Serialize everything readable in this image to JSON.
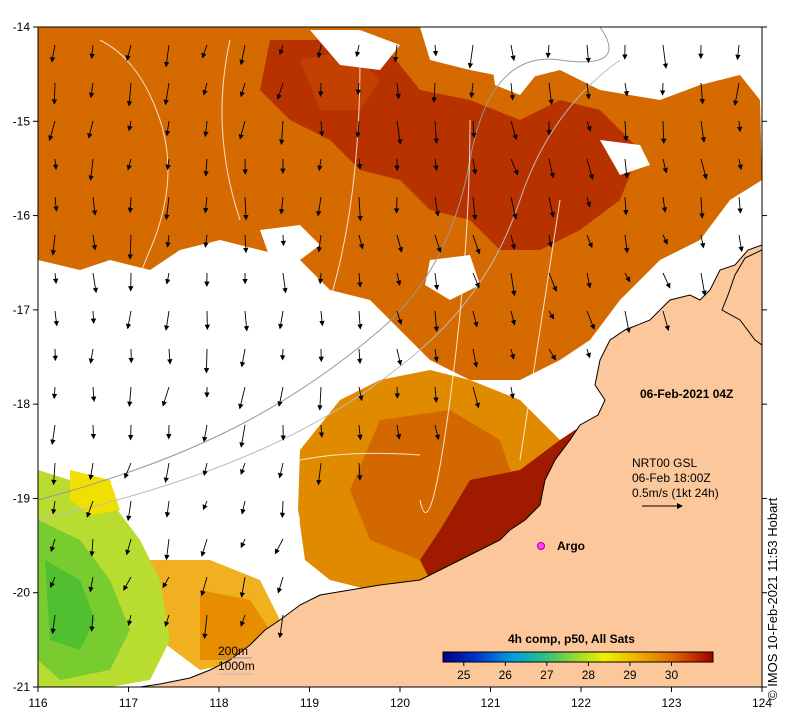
{
  "map": {
    "date_label": "06-Feb-2021 04Z",
    "current_info": {
      "line1": "NRT00 GSL",
      "line2": "06-Feb 18:00Z",
      "line3": "0.5m/s (1kt 24h)"
    },
    "argo_label": "Argo",
    "bathymetry_legend": [
      "200m",
      "1000m"
    ],
    "colorbar": {
      "title": "4h comp, p50, All Sats",
      "ticks": [
        "25",
        "26",
        "27",
        "28",
        "29",
        "30"
      ],
      "range": [
        24.5,
        31.0
      ],
      "colors": [
        "#00007f",
        "#0033cc",
        "#00a0e0",
        "#30c080",
        "#a0dc28",
        "#f0f000",
        "#f0b000",
        "#e07000",
        "#c03000",
        "#a00000"
      ]
    },
    "x_ticks": [
      "116",
      "117",
      "118",
      "119",
      "120",
      "121",
      "122",
      "123",
      "124"
    ],
    "y_ticks": [
      "-14",
      "-15",
      "-16",
      "-17",
      "-18",
      "-19",
      "-20",
      "-21"
    ],
    "credit": "© IMOS 10-Feb-2021 11:53 Hobart",
    "colors": {
      "land": "#fcc89b",
      "warm": "#d86c00",
      "hot": "#b02800",
      "mid": "#f0a000",
      "cool": "#b8dc30",
      "cloud": "#ffffff"
    }
  }
}
